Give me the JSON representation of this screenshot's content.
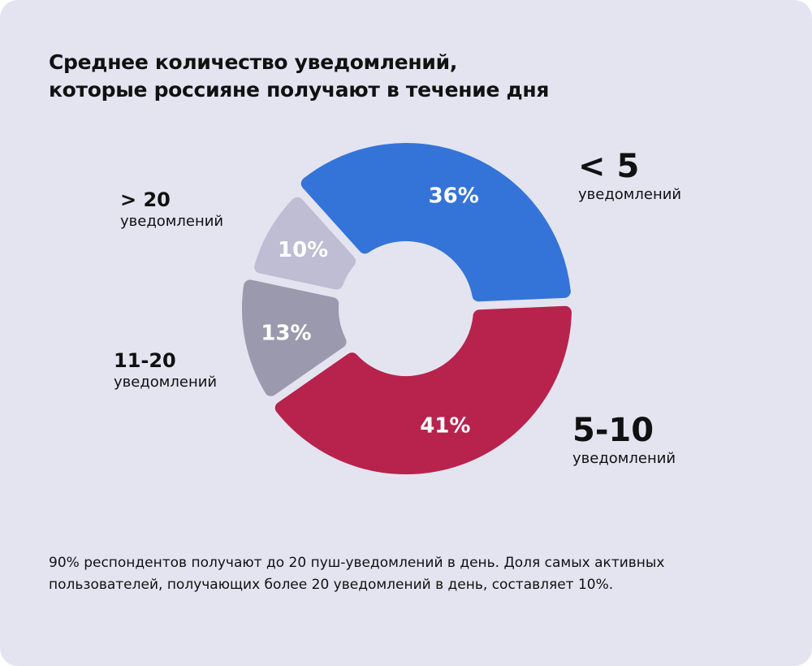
{
  "title_line1": "Среднее количество уведомлений,",
  "title_line2": "которые россияне получают в течение дня",
  "chart_data": {
    "type": "pie",
    "variant": "donut",
    "categories": [
      "< 5",
      "5-10",
      "11-20",
      "> 20"
    ],
    "category_sublabel": "уведомлений",
    "values": [
      36,
      41,
      13,
      10
    ],
    "value_labels": [
      "36%",
      "41%",
      "13%",
      "10%"
    ],
    "colors": [
      "#3474d8",
      "#b7234c",
      "#9b99ad",
      "#bebdd4"
    ],
    "title": "Среднее количество уведомлений, которые россияне получают в течение дня"
  },
  "note": "90% респондентов получают до 20 пуш-уведомлений в день. Доля самых активных пользователей, получающих более 20 уведомлений в день, составляет 10%."
}
